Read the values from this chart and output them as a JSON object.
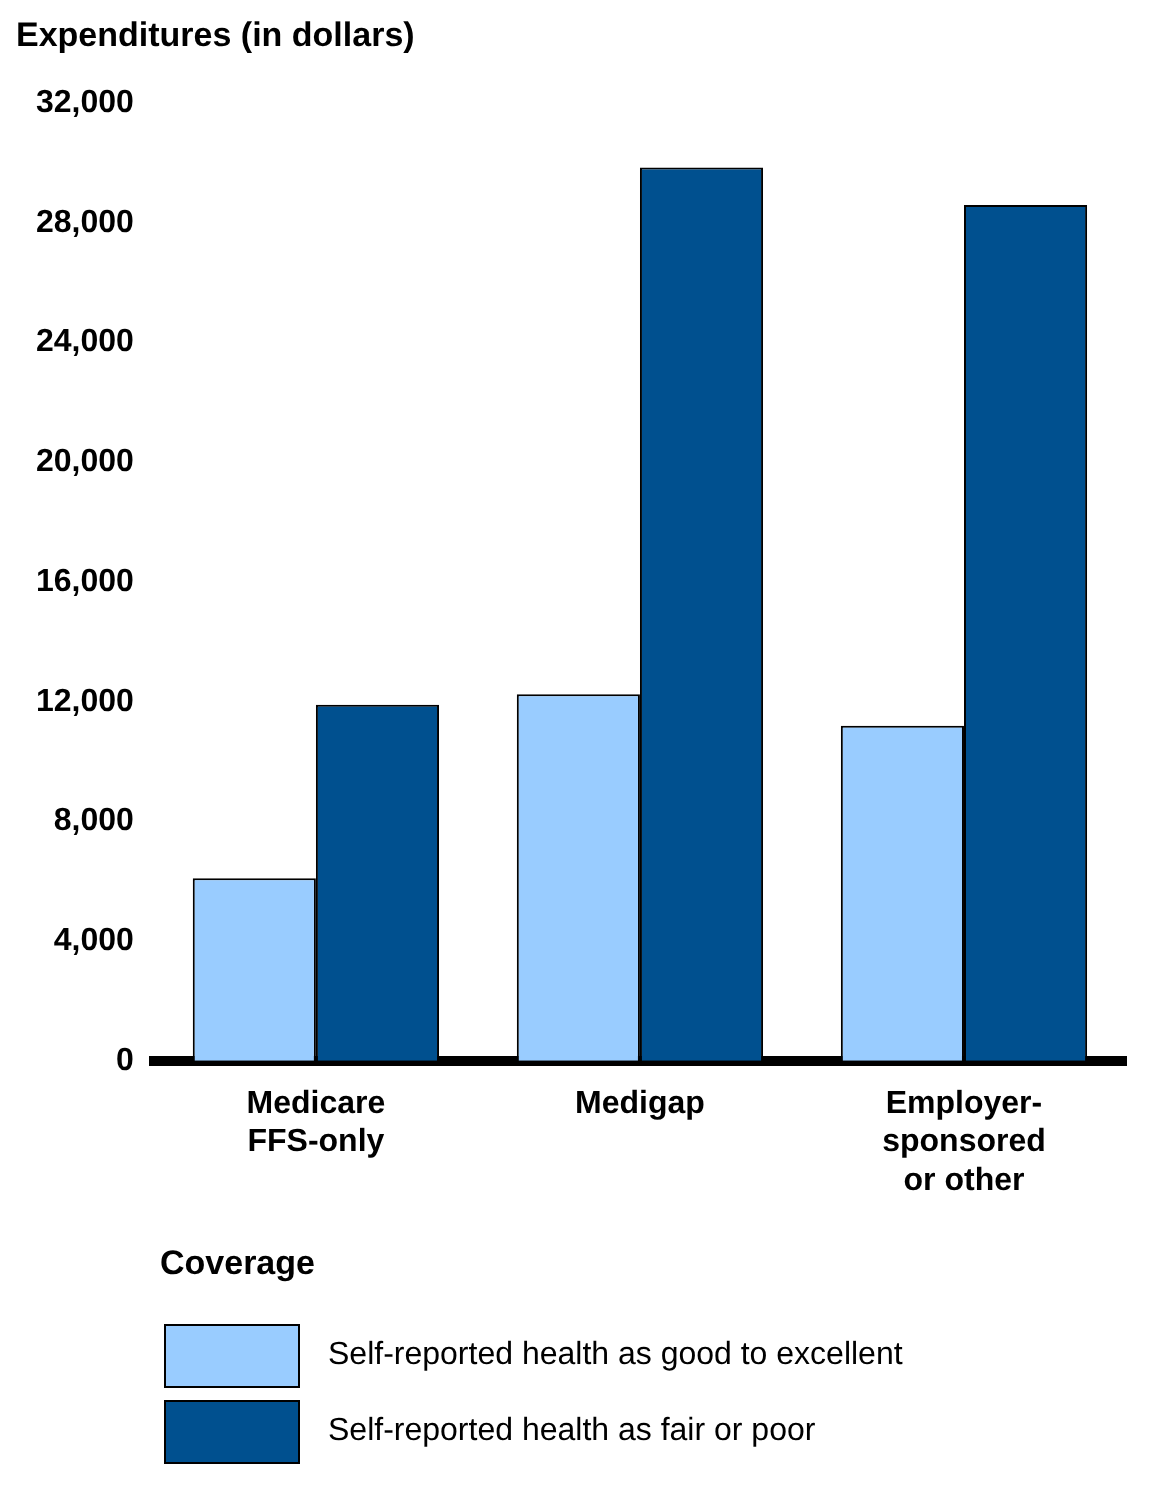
{
  "chart_data": {
    "type": "bar",
    "ylabel": "Expenditures (in dollars)",
    "xlabel": "Coverage",
    "categories": [
      "Medicare\nFFS-only",
      "Medigap",
      "Employer-\nsponsored\nor other"
    ],
    "series": [
      {
        "name": "Self-reported health as good to excellent",
        "color": "#99ccff",
        "values": [
          6100,
          12250,
          11200
        ]
      },
      {
        "name": "Self-reported health as fair or poor",
        "color": "#00508f",
        "values": [
          11900,
          29850,
          28600
        ]
      }
    ],
    "ylim": [
      0,
      32000
    ],
    "yticks": [
      0,
      {
        "value": 4000,
        "label": "4,000"
      },
      {
        "value": 8000,
        "label": "8,000"
      },
      {
        "value": 12000,
        "label": "12,000"
      },
      {
        "value": 16000,
        "label": "16,000"
      },
      {
        "value": 20000,
        "label": "20,000"
      },
      {
        "value": 24000,
        "label": "24,000"
      },
      {
        "value": 28000,
        "label": "28,000"
      },
      {
        "value": 32000,
        "label": "32,000"
      }
    ],
    "grid": false,
    "legend": "bottom"
  }
}
